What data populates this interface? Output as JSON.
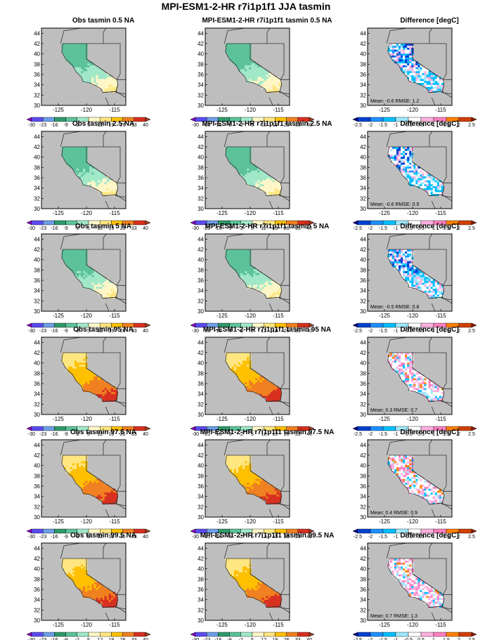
{
  "title": "MPI-ESM1-2-HR r7i1p1f1 JJA tasmin",
  "colorbars": {
    "abs": {
      "labels": [
        "-30",
        "-23",
        "-16",
        "-9",
        "-2",
        "5",
        "12",
        "19",
        "26",
        "33",
        "40"
      ],
      "colors": [
        "#8b00c8",
        "#5a4cf0",
        "#6e9ee8",
        "#2f9a6a",
        "#5cc29a",
        "#a0e8c8",
        "#fff7c8",
        "#ffe680",
        "#ffc000",
        "#f08020",
        "#d83020",
        "#a04020"
      ]
    },
    "diff": {
      "labels": [
        "-2.5",
        "-2",
        "-1.5",
        "-1",
        "-0.5",
        "0.5",
        "1",
        "1.5",
        "2",
        "2.5"
      ],
      "colors": [
        "#00008b",
        "#0040d0",
        "#1e90ff",
        "#00bfff",
        "#a0e8ff",
        "#ffffff",
        "#ffb0e0",
        "#ff80c0",
        "#ff8000",
        "#d04000",
        "#8b2000"
      ]
    }
  },
  "map_axes": {
    "x_ticks": [
      "-125",
      "-120",
      "-115"
    ],
    "y_ticks": [
      "44",
      "42",
      "40",
      "38",
      "36",
      "34",
      "32",
      "30"
    ]
  },
  "rows": [
    {
      "obs_title": "Obs tasmin 0.5 NA",
      "model_title": "MPI-ESM1-2-HR r7i1p1f1 tasmin 0.5 NA",
      "diff_title": "Difference [degC]",
      "stats": "Mean: -0.6  RMSE: 1.2",
      "level": "low"
    },
    {
      "obs_title": "Obs tasmin 2.5 NA",
      "model_title": "MPI-ESM1-2-HR r7i1p1f1 tasmin 2.5 NA",
      "diff_title": "Difference [degC]",
      "stats": "Mean: -0.6  RMSE: 0.9",
      "level": "low"
    },
    {
      "obs_title": "Obs tasmin 5 NA",
      "model_title": "MPI-ESM1-2-HR r7i1p1f1 tasmin 5 NA",
      "diff_title": "Difference [degC]",
      "stats": "Mean: -0.5  RMSE: 0.8",
      "level": "low"
    },
    {
      "obs_title": "Obs tasmin 95 NA",
      "model_title": "MPI-ESM1-2-HR r7i1p1f1 tasmin 95 NA",
      "diff_title": "Difference [degC]",
      "stats": "Mean: 0.3  RMSE: 0.7",
      "level": "high"
    },
    {
      "obs_title": "Obs tasmin 97.5 NA",
      "model_title": "MPI-ESM1-2-HR r7i1p1f1 tasmin 97.5 NA",
      "diff_title": "Difference [degC]",
      "stats": "Mean: 0.4  RMSE: 0.9",
      "level": "high"
    },
    {
      "obs_title": "Obs tasmin 99.5 NA",
      "model_title": "MPI-ESM1-2-HR r7i1p1f1 tasmin 99.5 NA",
      "diff_title": "Difference [degC]",
      "stats": "Mean: 0.7  RMSE: 1.3",
      "level": "high"
    }
  ],
  "chart_data": {
    "type": "heatmap",
    "title": "MPI-ESM1-2-HR r7i1p1f1 JJA tasmin",
    "xlim": [
      -128,
      -113
    ],
    "ylim": [
      30,
      45
    ],
    "x_ticks": [
      -125,
      -120,
      -115
    ],
    "y_ticks": [
      30,
      32,
      34,
      36,
      38,
      40,
      42,
      44
    ],
    "panel_columns": [
      "Obs",
      "MPI-ESM1-2-HR r7i1p1f1",
      "Difference [degC]"
    ],
    "panel_rows": [
      "0.5",
      "2.5",
      "5",
      "95",
      "97.5",
      "99.5"
    ],
    "difference_stats": [
      {
        "row": "0.5",
        "mean": -0.6,
        "rmse": 1.2
      },
      {
        "row": "2.5",
        "mean": -0.6,
        "rmse": 0.9
      },
      {
        "row": "5",
        "mean": -0.5,
        "rmse": 0.8
      },
      {
        "row": "95",
        "mean": 0.3,
        "rmse": 0.7
      },
      {
        "row": "97.5",
        "mean": 0.4,
        "rmse": 0.9
      },
      {
        "row": "99.5",
        "mean": 0.7,
        "rmse": 1.3
      }
    ],
    "abs_colorbar_ticks": [
      -30,
      -23,
      -16,
      -9,
      -2,
      5,
      12,
      19,
      26,
      33,
      40
    ],
    "diff_colorbar_ticks": [
      -2.5,
      -2,
      -1.5,
      -1,
      -0.5,
      0.5,
      1,
      1.5,
      2,
      2.5
    ]
  }
}
